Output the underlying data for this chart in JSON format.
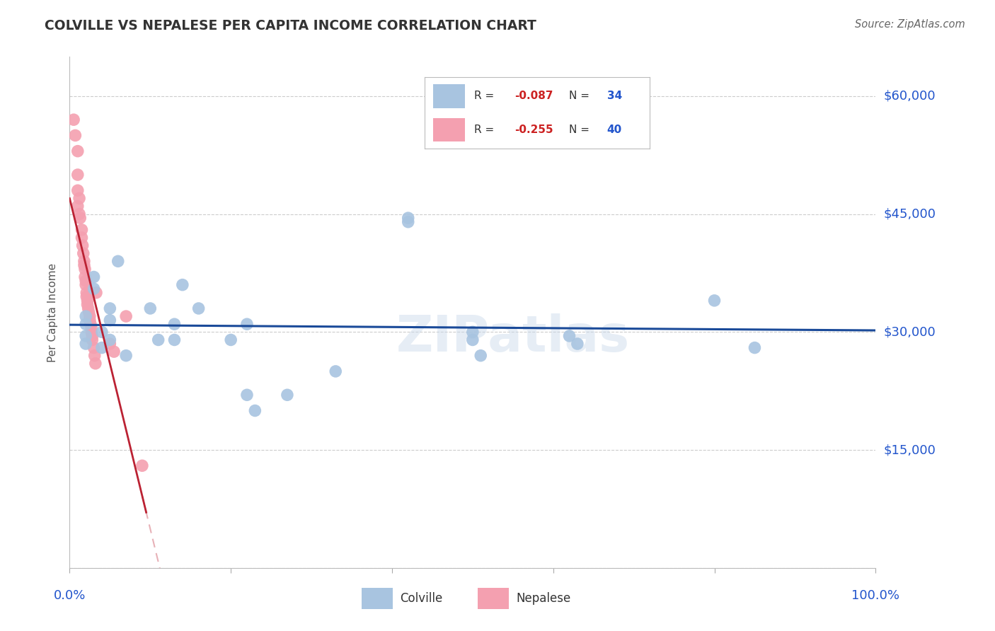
{
  "title": "COLVILLE VS NEPALESE PER CAPITA INCOME CORRELATION CHART",
  "source": "Source: ZipAtlas.com",
  "ylabel": "Per Capita Income",
  "yticks": [
    0,
    15000,
    30000,
    45000,
    60000
  ],
  "ytick_labels": [
    "",
    "$15,000",
    "$30,000",
    "$45,000",
    "$60,000"
  ],
  "xlim": [
    0,
    1
  ],
  "ylim": [
    0,
    65000
  ],
  "colville_color": "#a8c4e0",
  "nepalese_color": "#f4a0b0",
  "trend_colville_color": "#1a4a99",
  "trend_nepalese_color": "#bb2233",
  "watermark": "ZIPatlas",
  "colville_x": [
    0.02,
    0.02,
    0.02,
    0.02,
    0.03,
    0.03,
    0.04,
    0.04,
    0.05,
    0.05,
    0.05,
    0.06,
    0.07,
    0.1,
    0.11,
    0.13,
    0.13,
    0.14,
    0.16,
    0.2,
    0.22,
    0.22,
    0.23,
    0.27,
    0.33,
    0.42,
    0.42,
    0.5,
    0.5,
    0.51,
    0.62,
    0.63,
    0.8,
    0.85
  ],
  "colville_y": [
    31000,
    29500,
    28500,
    32000,
    37000,
    35500,
    30000,
    28000,
    33000,
    31500,
    29000,
    39000,
    27000,
    33000,
    29000,
    31000,
    29000,
    36000,
    33000,
    29000,
    31000,
    22000,
    20000,
    22000,
    25000,
    44000,
    44500,
    29000,
    30000,
    27000,
    29500,
    28500,
    34000,
    28000
  ],
  "nepalese_x": [
    0.005,
    0.007,
    0.01,
    0.01,
    0.01,
    0.01,
    0.012,
    0.012,
    0.013,
    0.015,
    0.015,
    0.016,
    0.017,
    0.018,
    0.018,
    0.019,
    0.019,
    0.02,
    0.02,
    0.021,
    0.021,
    0.022,
    0.022,
    0.023,
    0.024,
    0.025,
    0.025,
    0.026,
    0.027,
    0.027,
    0.028,
    0.028,
    0.03,
    0.031,
    0.032,
    0.033,
    0.05,
    0.055,
    0.07,
    0.09
  ],
  "nepalese_y": [
    57000,
    55000,
    53000,
    50000,
    48000,
    46000,
    47000,
    45000,
    44500,
    43000,
    42000,
    41000,
    40000,
    39000,
    38500,
    38000,
    37000,
    36500,
    36000,
    35000,
    34500,
    34000,
    33500,
    33000,
    32500,
    32000,
    31500,
    31000,
    30500,
    30000,
    29500,
    29000,
    28000,
    27000,
    26000,
    35000,
    28500,
    27500,
    32000,
    13000
  ]
}
